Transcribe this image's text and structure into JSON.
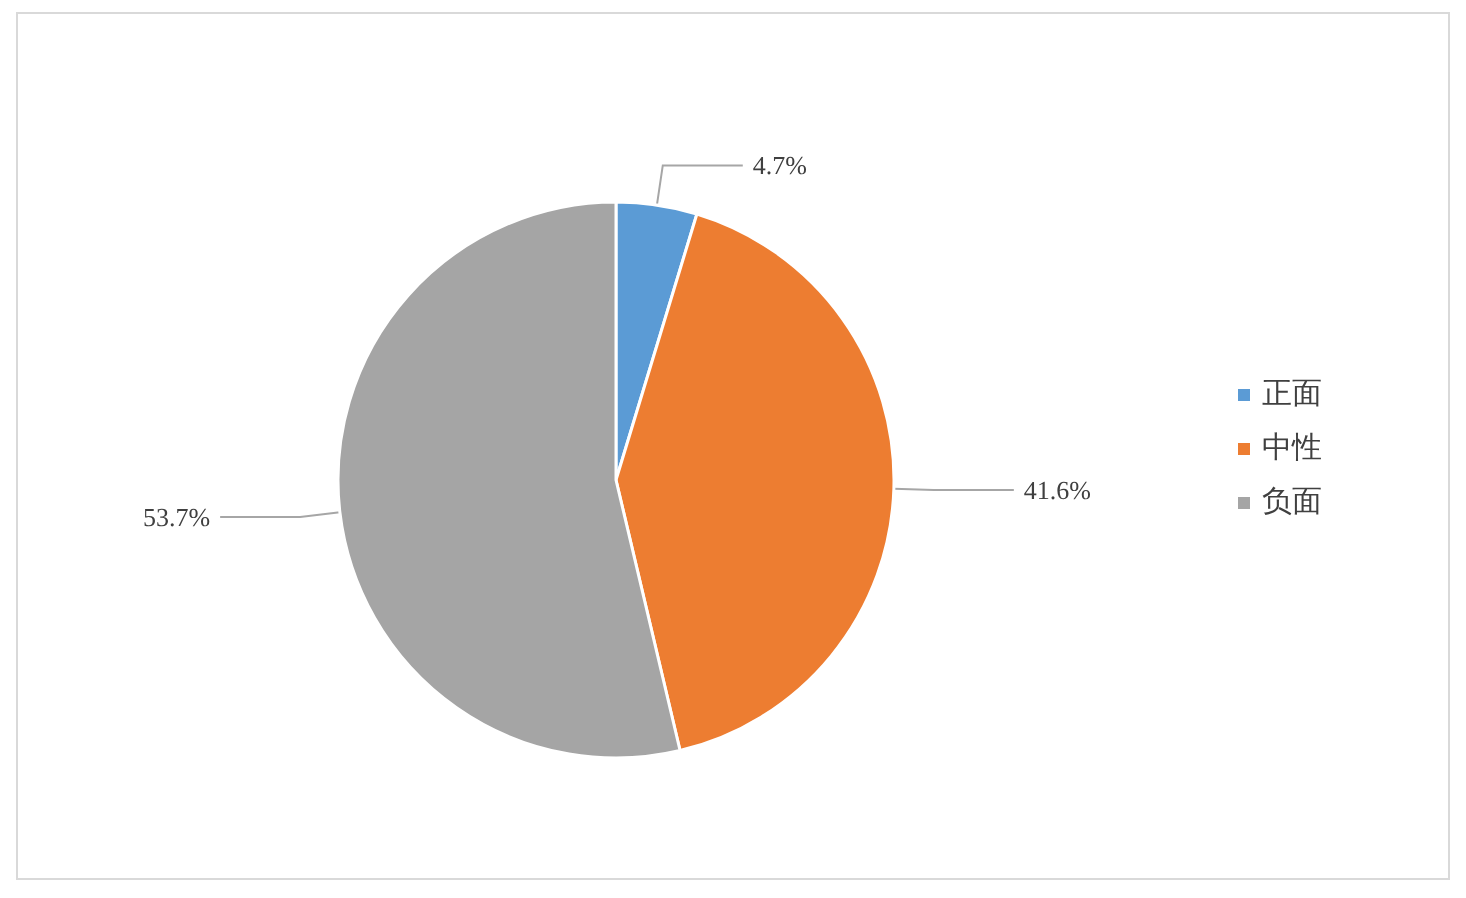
{
  "chart_data": {
    "type": "pie",
    "categories": [
      "正面",
      "中性",
      "负面"
    ],
    "values": [
      4.7,
      41.6,
      53.7
    ],
    "colors": [
      "#5b9bd5",
      "#ed7d31",
      "#a5a5a5"
    ],
    "value_labels": [
      "4.7%",
      "41.6%",
      "53.7%"
    ],
    "legend": "right"
  }
}
